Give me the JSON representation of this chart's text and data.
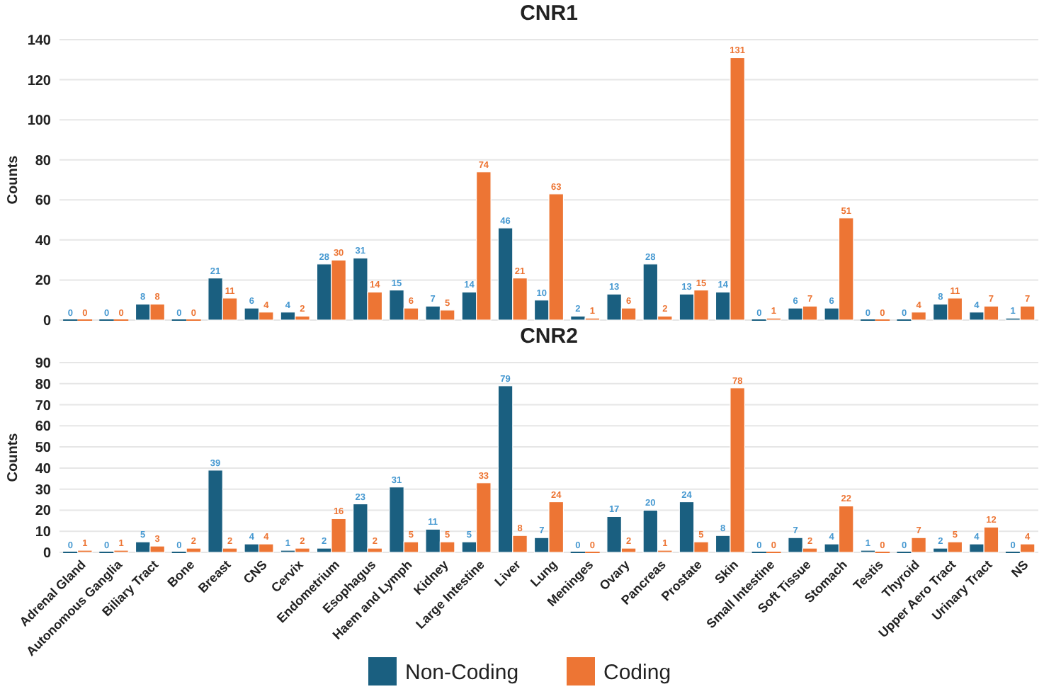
{
  "chart_data": [
    {
      "type": "bar",
      "title": "CNR1",
      "ylabel": "Counts",
      "categories": [
        null,
        null,
        null,
        null,
        null,
        null,
        null,
        null,
        null,
        null,
        null,
        null,
        null,
        null,
        null,
        null,
        null,
        null,
        null,
        null,
        null,
        null,
        null,
        null,
        null,
        null,
        null
      ],
      "series": [
        {
          "color": "#1a5f80",
          "values": [
            0,
            0,
            8,
            0,
            21,
            6,
            4,
            28,
            31,
            15,
            7,
            14,
            46,
            10,
            2,
            13,
            28,
            13,
            14,
            0,
            6,
            6,
            0,
            0,
            8,
            4,
            1
          ]
        },
        {
          "color": "#ed7534",
          "values": [
            0,
            0,
            8,
            0,
            11,
            4,
            2,
            30,
            14,
            6,
            5,
            74,
            21,
            63,
            1,
            6,
            2,
            15,
            131,
            1,
            7,
            51,
            0,
            4,
            11,
            7,
            7
          ]
        }
      ],
      "ylim": [
        0,
        140
      ],
      "yticks": [
        0,
        20,
        40,
        60,
        80,
        100,
        120,
        140
      ],
      "grid": "y",
      "data_labels": true,
      "tick_labels": "y",
      "legend": false
    },
    {
      "type": "bar",
      "title": "CNR2",
      "ylabel": "Counts",
      "categories": [
        "Adrenal Gland",
        "Autonomous Ganglia",
        "Biliary Tract",
        "Bone",
        "Breast",
        "CNS",
        "Cervix",
        "Endometrium",
        "Esophagus",
        "Haem and Lymph",
        "Kidney",
        "Large Intestine",
        "Liver",
        "Lung",
        "Meninges",
        "Ovary",
        "Pancreas",
        "Prostate",
        "Skin",
        "Small Intestine",
        "Soft Tissue",
        "Stomach",
        "Testis",
        "Thyroid",
        "Upper Aero Tract",
        "Urinary Tract",
        "NS"
      ],
      "series": [
        {
          "name": "Non-Coding",
          "color": "#1a5f80",
          "values": [
            0,
            0,
            5,
            0,
            39,
            4,
            1,
            2,
            23,
            31,
            11,
            5,
            79,
            7,
            0,
            17,
            20,
            24,
            8,
            0,
            7,
            4,
            1,
            0,
            2,
            4,
            0
          ]
        },
        {
          "name": "Coding",
          "color": "#ed7534",
          "values": [
            1,
            1,
            3,
            2,
            2,
            4,
            2,
            16,
            2,
            5,
            5,
            33,
            8,
            24,
            0,
            2,
            1,
            5,
            78,
            0,
            2,
            22,
            0,
            7,
            5,
            12,
            4
          ]
        }
      ],
      "ylim": [
        0,
        90
      ],
      "yticks": [
        0,
        10,
        20,
        30,
        40,
        50,
        60,
        70,
        80,
        90
      ],
      "grid": "y",
      "data_labels": true,
      "legend": "bottom"
    }
  ]
}
